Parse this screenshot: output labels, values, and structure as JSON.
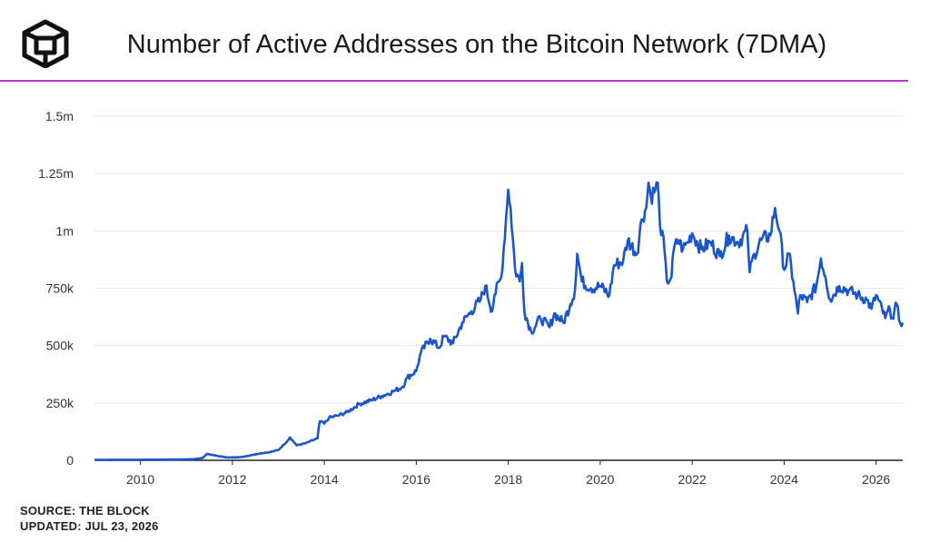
{
  "header": {
    "title": "Number of Active Addresses on the Bitcoin Network (7DMA)",
    "logo_icon": "cube-logo-icon",
    "accent_color": "#b43dc7"
  },
  "footer": {
    "source": "SOURCE: THE BLOCK",
    "updated": "UPDATED: JUL 23, 2026"
  },
  "chart_data": {
    "type": "line",
    "title": "Number of Active Addresses on the Bitcoin Network (7DMA)",
    "xlabel": "",
    "ylabel": "",
    "xlim": [
      2009.0,
      2026.58
    ],
    "ylim": [
      0,
      1500000
    ],
    "grid": true,
    "x_ticks": [
      2010,
      2012,
      2014,
      2016,
      2018,
      2020,
      2022,
      2024,
      2026
    ],
    "x_tick_labels": [
      "2010",
      "2012",
      "2014",
      "2016",
      "2018",
      "2020",
      "2022",
      "2024",
      "2026"
    ],
    "y_ticks": [
      0,
      250000,
      500000,
      750000,
      1000000,
      1250000,
      1500000
    ],
    "y_tick_labels": [
      "0",
      "250k",
      "500k",
      "750k",
      "1m",
      "1.25m",
      "1.5m"
    ],
    "line_color": "#1a56c9",
    "series": [
      {
        "x": [
          2009.0,
          2010.0,
          2010.5,
          2011.0,
          2011.2,
          2011.35,
          2011.45,
          2011.55,
          2011.7,
          2011.9,
          2012.2,
          2012.4,
          2012.6,
          2012.8,
          2013.0,
          2013.2,
          2013.25,
          2013.4,
          2013.6,
          2013.85,
          2013.9,
          2014.0,
          2014.1,
          2014.3,
          2014.5,
          2014.75,
          2015.0,
          2015.25,
          2015.5,
          2015.7,
          2015.8,
          2016.0,
          2016.1,
          2016.3,
          2016.5,
          2016.6,
          2016.8,
          2017.0,
          2017.2,
          2017.4,
          2017.5,
          2017.65,
          2017.7,
          2017.85,
          2017.95,
          2018.0,
          2018.05,
          2018.15,
          2018.25,
          2018.3,
          2018.35,
          2018.5,
          2018.7,
          2018.9,
          2019.0,
          2019.2,
          2019.35,
          2019.45,
          2019.5,
          2019.6,
          2019.8,
          2020.0,
          2020.2,
          2020.3,
          2020.5,
          2020.6,
          2020.8,
          2020.9,
          2021.0,
          2021.05,
          2021.1,
          2021.2,
          2021.25,
          2021.3,
          2021.35,
          2021.45,
          2021.55,
          2021.6,
          2021.7,
          2021.8,
          2021.9,
          2022.0,
          2022.2,
          2022.4,
          2022.6,
          2022.8,
          2023.0,
          2023.2,
          2023.25,
          2023.35,
          2023.5,
          2023.7,
          2023.8,
          2023.9,
          2024.0,
          2024.1,
          2024.2,
          2024.3,
          2024.35,
          2024.5,
          2024.7,
          2024.8,
          2024.9,
          2025.0,
          2025.2,
          2025.4,
          2025.6,
          2025.8,
          2025.9,
          2026.0,
          2026.2,
          2026.3,
          2026.35,
          2026.45,
          2026.5,
          2026.58
        ],
        "values": [
          2000,
          2500,
          3000,
          3500,
          6000,
          10000,
          28000,
          24000,
          18000,
          12000,
          14000,
          22000,
          30000,
          35000,
          45000,
          85000,
          100000,
          65000,
          75000,
          95000,
          170000,
          160000,
          185000,
          195000,
          210000,
          245000,
          260000,
          280000,
          300000,
          320000,
          360000,
          390000,
          470000,
          530000,
          490000,
          540000,
          510000,
          600000,
          650000,
          700000,
          760000,
          650000,
          720000,
          800000,
          1050000,
          1180000,
          1100000,
          830000,
          780000,
          860000,
          650000,
          560000,
          620000,
          580000,
          640000,
          600000,
          680000,
          740000,
          900000,
          780000,
          750000,
          760000,
          720000,
          850000,
          870000,
          960000,
          900000,
          1050000,
          1100000,
          1210000,
          1150000,
          1180000,
          1210000,
          1020000,
          1000000,
          780000,
          800000,
          920000,
          960000,
          920000,
          950000,
          990000,
          920000,
          950000,
          890000,
          980000,
          950000,
          1000000,
          820000,
          900000,
          960000,
          980000,
          1100000,
          1000000,
          830000,
          900000,
          780000,
          640000,
          720000,
          690000,
          760000,
          880000,
          800000,
          700000,
          760000,
          740000,
          720000,
          700000,
          660000,
          720000,
          620000,
          660000,
          620000,
          680000,
          610000,
          600000
        ]
      }
    ]
  }
}
